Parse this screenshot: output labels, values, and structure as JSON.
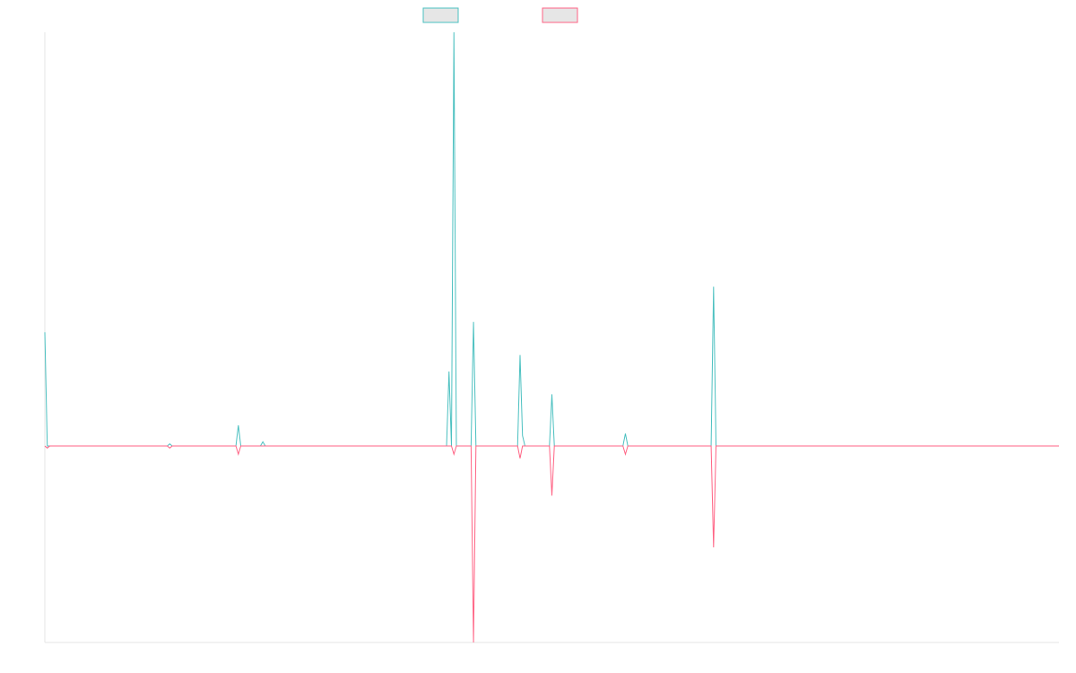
{
  "chart_data": {
    "type": "line",
    "title": "",
    "xlabel": "",
    "ylabel": "",
    "grid": false,
    "legend_placement": "top-center",
    "ylim": [
      -100,
      100
    ],
    "x": [
      0,
      1,
      2,
      3,
      4,
      5,
      6,
      7,
      8,
      9,
      10,
      11,
      12,
      13,
      14,
      15,
      16,
      17,
      18,
      19,
      20,
      21,
      22,
      23,
      24,
      25,
      26,
      27,
      28,
      29,
      30,
      31,
      32,
      33,
      34,
      35,
      36,
      37,
      38,
      39,
      40,
      41,
      42,
      43,
      44,
      45,
      46,
      47,
      48,
      49,
      50,
      51,
      52,
      53,
      54,
      55,
      56,
      57,
      58,
      59,
      60,
      61,
      62,
      63,
      64,
      65,
      66,
      67,
      68,
      69,
      70,
      71,
      72,
      73,
      74,
      75,
      76,
      77,
      78,
      79,
      80,
      81,
      82,
      83,
      84,
      85,
      86,
      87,
      88,
      89,
      90,
      91,
      92,
      93,
      94,
      95,
      96,
      97,
      98,
      99,
      100,
      101,
      102,
      103,
      104,
      105,
      106,
      107,
      108,
      109,
      110,
      111,
      112,
      113,
      114,
      115,
      116,
      117,
      118,
      119,
      120,
      121,
      122,
      123,
      124,
      125,
      126,
      127,
      128,
      129,
      130,
      131,
      132,
      133,
      134,
      135,
      136,
      137,
      138,
      139,
      140,
      141,
      142,
      143,
      144,
      145,
      146,
      147,
      148,
      149,
      150,
      151,
      152,
      153,
      154,
      155,
      156,
      157,
      158,
      159,
      160,
      161,
      162,
      163,
      164,
      165,
      166,
      167,
      168,
      169,
      170,
      171,
      172,
      173,
      174,
      175,
      176,
      177,
      178,
      179,
      180,
      181,
      182,
      183,
      184,
      185,
      186,
      187,
      188,
      189,
      190,
      191,
      192,
      193,
      194,
      195,
      196,
      197,
      198,
      199,
      200,
      201,
      202,
      203,
      204,
      205,
      206,
      207,
      208,
      209,
      210,
      211,
      212,
      213,
      214,
      215,
      216,
      217,
      218,
      219,
      220,
      221,
      222,
      223,
      224,
      225,
      226,
      227,
      228,
      229,
      230,
      231,
      232,
      233,
      234,
      235,
      236,
      237,
      238,
      239,
      240,
      241,
      242,
      243,
      244,
      245,
      246,
      247,
      248,
      249,
      250,
      251,
      252,
      253,
      254,
      255,
      256,
      257,
      258,
      259,
      260,
      261,
      262,
      263,
      264,
      265,
      266,
      267,
      268,
      269,
      270,
      271,
      272,
      273,
      274,
      275,
      276,
      277,
      278,
      279,
      280,
      281,
      282,
      283,
      284,
      285,
      286,
      287,
      288,
      289,
      290,
      291,
      292,
      293,
      294,
      295,
      296,
      297,
      298,
      299,
      300,
      301,
      302,
      303,
      304,
      305,
      306,
      307,
      308,
      309,
      310,
      311,
      312,
      313,
      314,
      315,
      316,
      317,
      318,
      319,
      320,
      321,
      322,
      323,
      324,
      325,
      326,
      327,
      328,
      329,
      330,
      331,
      332,
      333,
      334,
      335,
      336,
      337,
      338,
      339,
      340,
      341,
      342,
      343,
      344,
      345,
      346,
      347,
      348,
      349,
      350,
      351,
      352,
      353,
      354,
      355,
      356,
      357,
      358,
      359,
      360,
      361,
      362,
      363,
      364,
      365,
      366,
      367,
      368,
      369,
      370,
      371,
      372,
      373,
      374,
      375,
      376,
      377,
      378,
      379,
      380,
      381,
      382,
      383,
      384,
      385,
      386,
      387,
      388,
      389,
      390,
      391,
      392,
      393,
      394,
      395,
      396,
      397,
      398,
      399,
      400,
      401,
      402,
      403,
      404,
      405,
      406,
      407,
      408,
      409,
      410,
      411,
      412,
      413,
      414
    ],
    "series": [
      {
        "color": "#4bc0c0",
        "spikes": [
          [
            0,
            55
          ],
          [
            1,
            0
          ],
          [
            51,
            1
          ],
          [
            79,
            10
          ],
          [
            89,
            2
          ],
          [
            165,
            36
          ],
          [
            167,
            200
          ],
          [
            175,
            60
          ],
          [
            194,
            44
          ],
          [
            195,
            5
          ],
          [
            207,
            25
          ],
          [
            237,
            6
          ],
          [
            273,
            77
          ]
        ]
      },
      {
        "color": "#ff6384",
        "spikes": [
          [
            0,
            0
          ],
          [
            1,
            -1
          ],
          [
            51,
            -1
          ],
          [
            79,
            -4
          ],
          [
            165,
            0
          ],
          [
            167,
            -4
          ],
          [
            175,
            -95
          ],
          [
            194,
            -6
          ],
          [
            207,
            -24
          ],
          [
            237,
            -4
          ],
          [
            273,
            -49
          ]
        ]
      }
    ],
    "ylim_display": [
      -95,
      200
    ]
  }
}
